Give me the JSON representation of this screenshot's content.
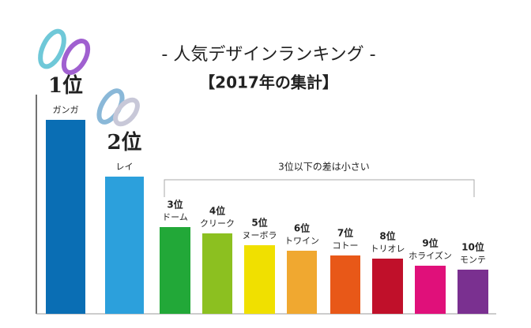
{
  "chart_data": {
    "type": "bar",
    "title": "- 人気デザインランキング -",
    "subtitle": "【2017年の集計】",
    "annotation": "3位以下の差は小さい",
    "rank_labels": [
      "1位",
      "2位",
      "3位",
      "4位",
      "5位",
      "6位",
      "7位",
      "8位",
      "9位",
      "10位"
    ],
    "categories": [
      "ガンガ",
      "レイ",
      "ドーム",
      "クリーク",
      "ヌーボラ",
      "トワイン",
      "コトー",
      "トリオレ",
      "ホライズン",
      "モンテ"
    ],
    "values": [
      246,
      174,
      110,
      102,
      87,
      80,
      74,
      70,
      61,
      56
    ],
    "colors": [
      "#0a6eb4",
      "#2ca0dc",
      "#22a838",
      "#8cc020",
      "#f0e000",
      "#f0a830",
      "#e85818",
      "#c0102a",
      "#e0107a",
      "#7a3090"
    ],
    "ylim": [
      0,
      300
    ]
  }
}
